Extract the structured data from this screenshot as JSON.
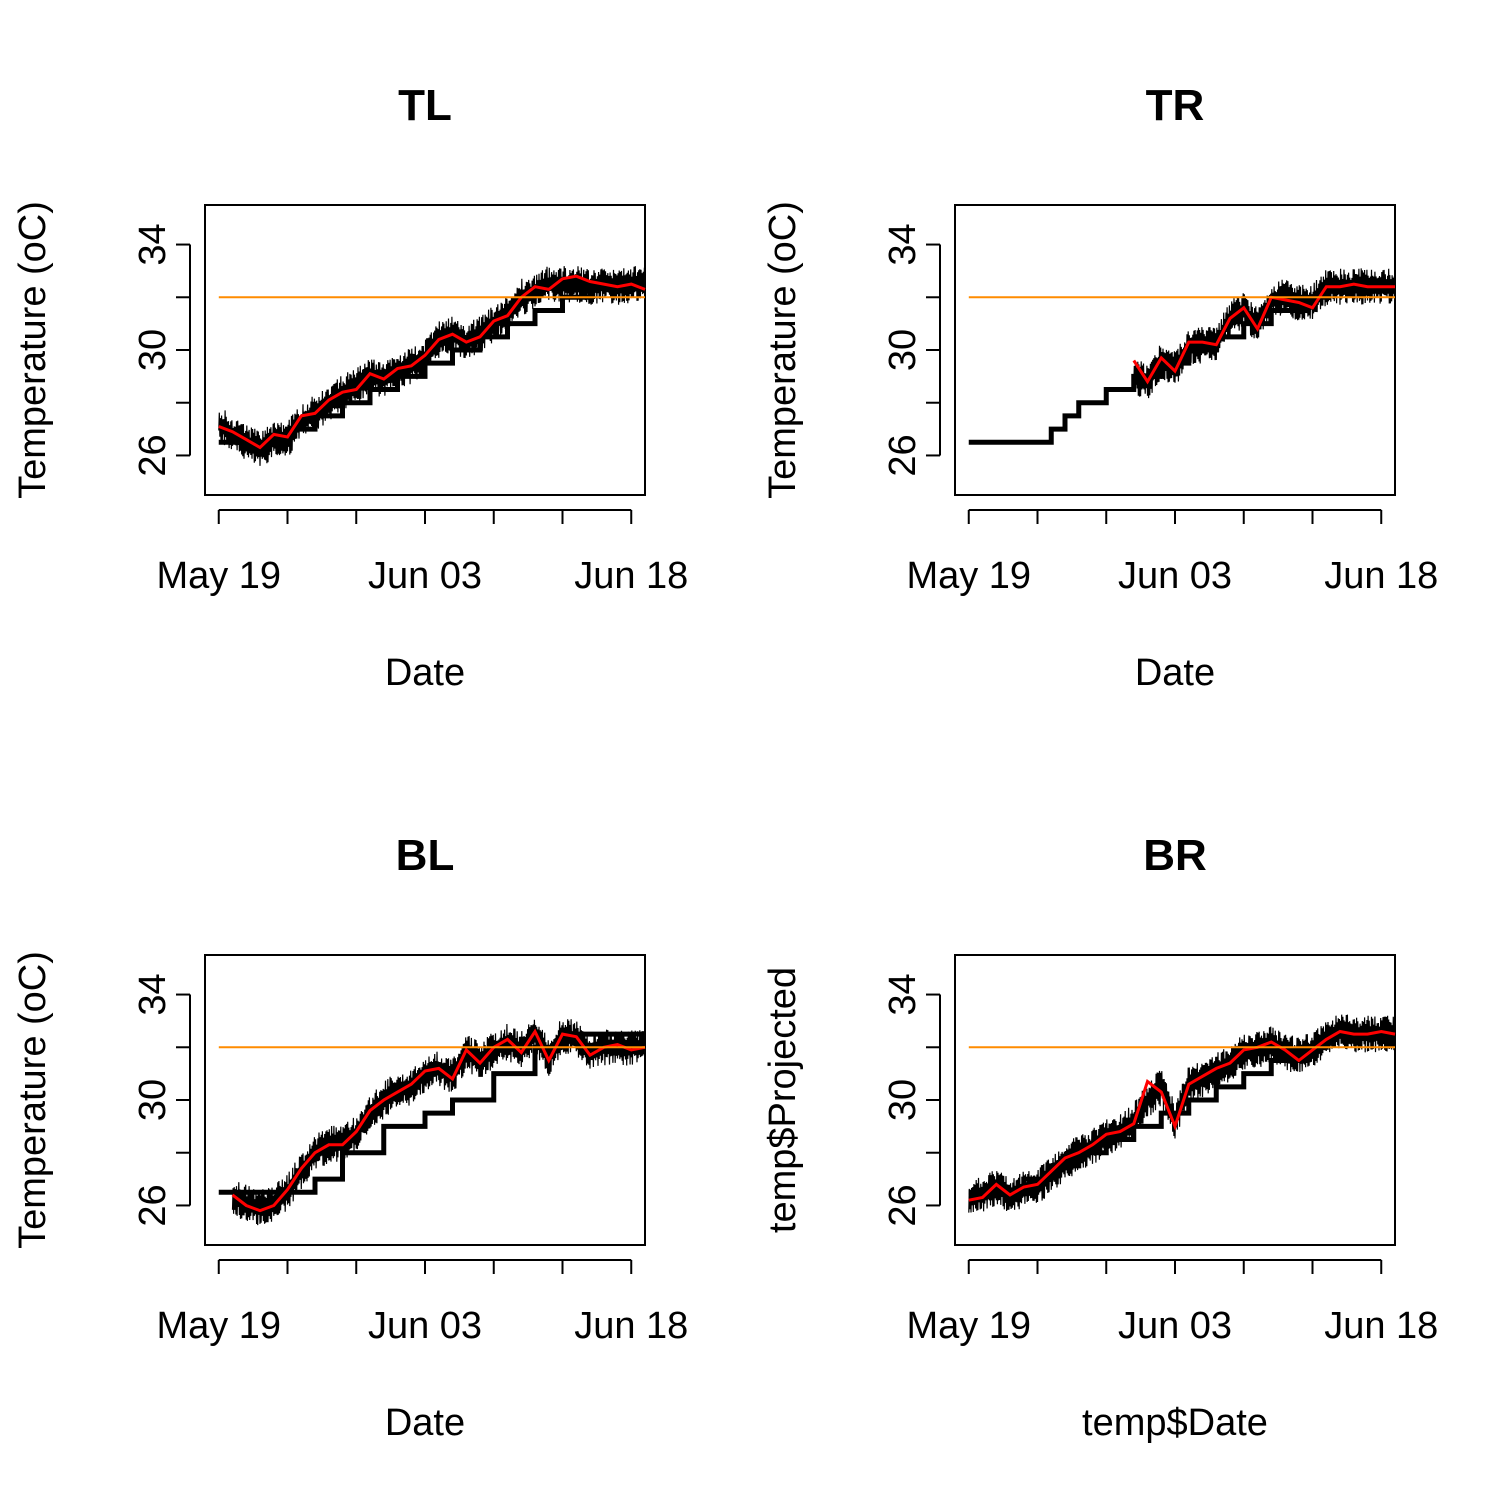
{
  "chart_data": [
    {
      "type": "line",
      "title": "TL",
      "xlabel": "Date",
      "ylabel": "Temperature (oC)",
      "x_ticks": [
        "May 19",
        "Jun 03",
        "Jun 18"
      ],
      "y_ticks": [
        26,
        30,
        34
      ],
      "xlim": [
        "2024-05-18",
        "2024-06-19"
      ],
      "ylim": [
        24.5,
        35.5
      ],
      "series": [
        {
          "color": "#000000",
          "style": "step",
          "x": [
            "2024-05-19",
            "2024-05-24",
            "2024-05-26",
            "2024-05-28",
            "2024-05-30",
            "2024-06-01",
            "2024-06-03",
            "2024-06-05",
            "2024-06-07",
            "2024-06-09",
            "2024-06-11",
            "2024-06-13",
            "2024-06-15",
            "2024-06-17",
            "2024-06-19"
          ],
          "y": [
            26.5,
            27.0,
            27.5,
            28.0,
            28.5,
            29.0,
            29.5,
            30.0,
            30.5,
            31.0,
            31.5,
            32.0,
            32.5,
            32.5,
            32.5
          ]
        },
        {
          "color": "#000000",
          "style": "noisy",
          "x": [
            "2024-05-19",
            "2024-05-20",
            "2024-05-21",
            "2024-05-22",
            "2024-05-23",
            "2024-05-24",
            "2024-05-25",
            "2024-05-26",
            "2024-05-27",
            "2024-05-28",
            "2024-05-29",
            "2024-05-30",
            "2024-05-31",
            "2024-06-01",
            "2024-06-02",
            "2024-06-03",
            "2024-06-04",
            "2024-06-05",
            "2024-06-06",
            "2024-06-07",
            "2024-06-08",
            "2024-06-09",
            "2024-06-10",
            "2024-06-11",
            "2024-06-12",
            "2024-06-13",
            "2024-06-14",
            "2024-06-15",
            "2024-06-16",
            "2024-06-17",
            "2024-06-18",
            "2024-06-19"
          ],
          "y": [
            27.2,
            26.8,
            26.5,
            26.2,
            26.6,
            26.6,
            27.3,
            27.6,
            28.0,
            28.4,
            28.6,
            29.0,
            28.9,
            29.2,
            29.4,
            29.7,
            30.4,
            30.6,
            30.3,
            30.6,
            31.0,
            31.4,
            32.0,
            32.2,
            32.5,
            32.5,
            32.5,
            32.4,
            32.5,
            32.4,
            32.5,
            32.5
          ]
        },
        {
          "color": "#ff0000",
          "style": "line",
          "x": [
            "2024-05-19",
            "2024-05-20",
            "2024-05-21",
            "2024-05-22",
            "2024-05-23",
            "2024-05-24",
            "2024-05-25",
            "2024-05-26",
            "2024-05-27",
            "2024-05-28",
            "2024-05-29",
            "2024-05-30",
            "2024-05-31",
            "2024-06-01",
            "2024-06-02",
            "2024-06-03",
            "2024-06-04",
            "2024-06-05",
            "2024-06-06",
            "2024-06-07",
            "2024-06-08",
            "2024-06-09",
            "2024-06-10",
            "2024-06-11",
            "2024-06-12",
            "2024-06-13",
            "2024-06-14",
            "2024-06-15",
            "2024-06-16",
            "2024-06-17",
            "2024-06-18",
            "2024-06-19"
          ],
          "y": [
            27.1,
            26.9,
            26.6,
            26.3,
            26.8,
            26.7,
            27.5,
            27.6,
            28.1,
            28.4,
            28.5,
            29.1,
            28.9,
            29.3,
            29.4,
            29.8,
            30.4,
            30.6,
            30.3,
            30.5,
            31.1,
            31.3,
            32.0,
            32.4,
            32.3,
            32.7,
            32.8,
            32.6,
            32.5,
            32.4,
            32.5,
            32.3
          ]
        },
        {
          "color": "#ff8c00",
          "style": "line",
          "x": [
            "2024-05-19",
            "2024-06-19"
          ],
          "y": [
            32,
            32
          ]
        }
      ]
    },
    {
      "type": "line",
      "title": "TR",
      "xlabel": "Date",
      "ylabel": "Temperature (oC)",
      "x_ticks": [
        "May 19",
        "Jun 03",
        "Jun 18"
      ],
      "y_ticks": [
        26,
        30,
        34
      ],
      "xlim": [
        "2024-05-18",
        "2024-06-19"
      ],
      "ylim": [
        24.5,
        35.5
      ],
      "series": [
        {
          "color": "#000000",
          "style": "step",
          "x": [
            "2024-05-19",
            "2024-05-25",
            "2024-05-26",
            "2024-05-27",
            "2024-05-29",
            "2024-05-31",
            "2024-06-02",
            "2024-06-04",
            "2024-06-06",
            "2024-06-08",
            "2024-06-10",
            "2024-06-12",
            "2024-06-14",
            "2024-06-16",
            "2024-06-19"
          ],
          "y": [
            26.5,
            27.0,
            27.5,
            28.0,
            28.5,
            29.0,
            29.5,
            30.0,
            30.5,
            31.0,
            31.5,
            32.0,
            32.5,
            32.5,
            32.5
          ]
        },
        {
          "color": "#000000",
          "style": "noisy",
          "x": [
            "2024-05-31",
            "2024-06-01",
            "2024-06-02",
            "2024-06-03",
            "2024-06-04",
            "2024-06-05",
            "2024-06-06",
            "2024-06-07",
            "2024-06-08",
            "2024-06-09",
            "2024-06-10",
            "2024-06-11",
            "2024-06-12",
            "2024-06-13",
            "2024-06-14",
            "2024-06-15",
            "2024-06-16",
            "2024-06-17",
            "2024-06-18",
            "2024-06-19"
          ],
          "y": [
            29.0,
            28.8,
            29.6,
            29.3,
            30.1,
            30.2,
            30.2,
            31.2,
            31.5,
            30.9,
            31.9,
            32.0,
            31.8,
            31.8,
            32.4,
            32.4,
            32.4,
            32.4,
            32.4,
            32.4
          ]
        },
        {
          "color": "#ff0000",
          "style": "line",
          "x": [
            "2024-05-31",
            "2024-06-01",
            "2024-06-02",
            "2024-06-03",
            "2024-06-04",
            "2024-06-05",
            "2024-06-06",
            "2024-06-07",
            "2024-06-08",
            "2024-06-09",
            "2024-06-10",
            "2024-06-11",
            "2024-06-12",
            "2024-06-13",
            "2024-06-14",
            "2024-06-15",
            "2024-06-16",
            "2024-06-17",
            "2024-06-18",
            "2024-06-19"
          ],
          "y": [
            29.6,
            28.8,
            29.7,
            29.2,
            30.3,
            30.3,
            30.2,
            31.2,
            31.6,
            30.8,
            32.0,
            31.9,
            31.8,
            31.6,
            32.4,
            32.4,
            32.5,
            32.4,
            32.4,
            32.4
          ]
        },
        {
          "color": "#ff8c00",
          "style": "line",
          "x": [
            "2024-05-19",
            "2024-06-19"
          ],
          "y": [
            32,
            32
          ]
        }
      ]
    },
    {
      "type": "line",
      "title": "BL",
      "xlabel": "Date",
      "ylabel": "Temperature (oC)",
      "x_ticks": [
        "May 19",
        "Jun 03",
        "Jun 18"
      ],
      "y_ticks": [
        26,
        30,
        34
      ],
      "xlim": [
        "2024-05-18",
        "2024-06-19"
      ],
      "ylim": [
        24.5,
        35.5
      ],
      "series": [
        {
          "color": "#000000",
          "style": "step",
          "x": [
            "2024-05-19",
            "2024-05-24",
            "2024-05-26",
            "2024-05-28",
            "2024-05-31",
            "2024-06-03",
            "2024-06-05",
            "2024-06-08",
            "2024-06-11",
            "2024-06-13",
            "2024-06-19"
          ],
          "y": [
            26.5,
            26.5,
            27.0,
            28.0,
            29.0,
            29.5,
            30.0,
            31.0,
            32.0,
            32.5,
            32.5
          ]
        },
        {
          "color": "#000000",
          "style": "noisy",
          "x": [
            "2024-05-20",
            "2024-05-21",
            "2024-05-22",
            "2024-05-23",
            "2024-05-24",
            "2024-05-25",
            "2024-05-26",
            "2024-05-27",
            "2024-05-28",
            "2024-05-29",
            "2024-05-30",
            "2024-05-31",
            "2024-06-01",
            "2024-06-02",
            "2024-06-03",
            "2024-06-04",
            "2024-06-05",
            "2024-06-06",
            "2024-06-07",
            "2024-06-08",
            "2024-06-09",
            "2024-06-10",
            "2024-06-11",
            "2024-06-12",
            "2024-06-13",
            "2024-06-14",
            "2024-06-15",
            "2024-06-16",
            "2024-06-17",
            "2024-06-18",
            "2024-06-19"
          ],
          "y": [
            26.3,
            26.1,
            25.9,
            26.1,
            26.5,
            27.3,
            28.0,
            28.3,
            28.4,
            28.7,
            29.5,
            30.0,
            30.4,
            30.5,
            31.0,
            31.2,
            30.9,
            31.8,
            31.5,
            31.9,
            32.2,
            31.9,
            32.5,
            31.6,
            32.5,
            32.3,
            31.8,
            32.0,
            32.0,
            32.0,
            32.0
          ]
        },
        {
          "color": "#ff0000",
          "style": "line",
          "x": [
            "2024-05-20",
            "2024-05-21",
            "2024-05-22",
            "2024-05-23",
            "2024-05-24",
            "2024-05-25",
            "2024-05-26",
            "2024-05-27",
            "2024-05-28",
            "2024-05-29",
            "2024-05-30",
            "2024-05-31",
            "2024-06-01",
            "2024-06-02",
            "2024-06-03",
            "2024-06-04",
            "2024-06-05",
            "2024-06-06",
            "2024-06-07",
            "2024-06-08",
            "2024-06-09",
            "2024-06-10",
            "2024-06-11",
            "2024-06-12",
            "2024-06-13",
            "2024-06-14",
            "2024-06-15",
            "2024-06-16",
            "2024-06-17",
            "2024-06-18",
            "2024-06-19"
          ],
          "y": [
            26.4,
            26.0,
            25.8,
            26.0,
            26.6,
            27.4,
            28.0,
            28.3,
            28.3,
            28.8,
            29.6,
            30.0,
            30.3,
            30.6,
            31.1,
            31.2,
            30.8,
            31.9,
            31.4,
            32.0,
            32.3,
            31.8,
            32.6,
            31.5,
            32.5,
            32.4,
            31.7,
            32.0,
            32.1,
            31.9,
            32.0
          ]
        },
        {
          "color": "#ff8c00",
          "style": "line",
          "x": [
            "2024-05-19",
            "2024-06-19"
          ],
          "y": [
            32,
            32
          ]
        }
      ]
    },
    {
      "type": "line",
      "title": "BR",
      "xlabel": "temp$Date",
      "ylabel": "temp$Projected",
      "x_ticks": [
        "May 19",
        "Jun 03",
        "Jun 18"
      ],
      "y_ticks": [
        26,
        30,
        34
      ],
      "xlim": [
        "2024-05-18",
        "2024-06-19"
      ],
      "ylim": [
        24.5,
        35.5
      ],
      "series": [
        {
          "color": "#000000",
          "style": "step",
          "x": [
            "2024-05-19",
            "2024-05-21",
            "2024-05-23",
            "2024-05-25",
            "2024-05-27",
            "2024-05-29",
            "2024-05-31",
            "2024-06-02",
            "2024-06-04",
            "2024-06-06",
            "2024-06-08",
            "2024-06-10",
            "2024-06-12",
            "2024-06-14",
            "2024-06-19"
          ],
          "y": [
            26.5,
            26.5,
            27.0,
            27.5,
            28.0,
            28.5,
            29.0,
            29.5,
            30.0,
            30.5,
            31.0,
            31.5,
            32.0,
            32.5,
            32.5
          ]
        },
        {
          "color": "#000000",
          "style": "noisy",
          "x": [
            "2024-05-19",
            "2024-05-20",
            "2024-05-21",
            "2024-05-22",
            "2024-05-23",
            "2024-05-24",
            "2024-05-25",
            "2024-05-26",
            "2024-05-27",
            "2024-05-28",
            "2024-05-29",
            "2024-05-30",
            "2024-05-31",
            "2024-06-01",
            "2024-06-02",
            "2024-06-03",
            "2024-06-04",
            "2024-06-05",
            "2024-06-06",
            "2024-06-07",
            "2024-06-08",
            "2024-06-09",
            "2024-06-10",
            "2024-06-11",
            "2024-06-12",
            "2024-06-13",
            "2024-06-14",
            "2024-06-15",
            "2024-06-16",
            "2024-06-17",
            "2024-06-18",
            "2024-06-19"
          ],
          "y": [
            26.3,
            26.4,
            26.7,
            26.4,
            26.6,
            26.7,
            27.2,
            27.6,
            28.0,
            28.2,
            28.6,
            28.8,
            29.2,
            30.0,
            30.5,
            29.2,
            30.6,
            30.8,
            31.1,
            31.4,
            31.8,
            31.9,
            32.1,
            31.8,
            31.7,
            31.9,
            32.3,
            32.6,
            32.5,
            32.5,
            32.5,
            32.5
          ]
        },
        {
          "color": "#ff0000",
          "style": "line",
          "x": [
            "2024-05-19",
            "2024-05-20",
            "2024-05-21",
            "2024-05-22",
            "2024-05-23",
            "2024-05-24",
            "2024-05-25",
            "2024-05-26",
            "2024-05-27",
            "2024-05-28",
            "2024-05-29",
            "2024-05-30",
            "2024-05-31",
            "2024-06-01",
            "2024-06-02",
            "2024-06-03",
            "2024-06-04",
            "2024-06-05",
            "2024-06-06",
            "2024-06-07",
            "2024-06-08",
            "2024-06-09",
            "2024-06-10",
            "2024-06-11",
            "2024-06-12",
            "2024-06-13",
            "2024-06-14",
            "2024-06-15",
            "2024-06-16",
            "2024-06-17",
            "2024-06-18",
            "2024-06-19"
          ],
          "y": [
            26.2,
            26.3,
            26.8,
            26.4,
            26.7,
            26.8,
            27.3,
            27.8,
            28.0,
            28.3,
            28.7,
            28.8,
            29.1,
            30.7,
            30.3,
            29.0,
            30.6,
            30.9,
            31.2,
            31.4,
            31.9,
            32.0,
            32.2,
            31.9,
            31.5,
            31.9,
            32.3,
            32.6,
            32.5,
            32.5,
            32.6,
            32.5
          ]
        },
        {
          "color": "#ff8c00",
          "style": "line",
          "x": [
            "2024-05-19",
            "2024-06-19"
          ],
          "y": [
            32,
            32
          ]
        }
      ]
    }
  ]
}
